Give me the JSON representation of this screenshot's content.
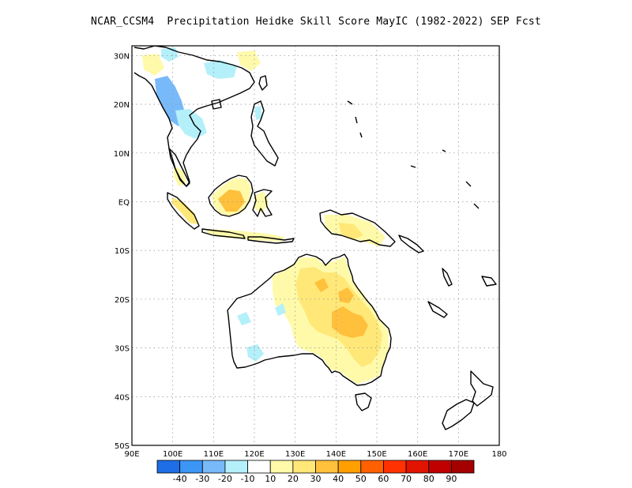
{
  "title": "NCAR_CCSM4  Precipitation Heidke Skill Score MayIC (1982-2022) SEP Fcst",
  "map": {
    "lon_range": [
      90,
      180
    ],
    "lat_range": [
      -50,
      32
    ],
    "lon_ticks": [
      "90E",
      "100E",
      "110E",
      "120E",
      "130E",
      "140E",
      "150E",
      "160E",
      "170E",
      "180"
    ],
    "lat_ticks": [
      "30N",
      "20N",
      "10N",
      "EQ",
      "10S",
      "20S",
      "30S",
      "40S",
      "50S"
    ],
    "lon_tick_values": [
      90,
      100,
      110,
      120,
      130,
      140,
      150,
      160,
      170,
      180
    ],
    "lat_tick_values": [
      30,
      20,
      10,
      0,
      -10,
      -20,
      -30,
      -40,
      -50
    ],
    "gridlines": "dotted"
  },
  "colorbar": {
    "labels": [
      "-40",
      "-30",
      "-20",
      "-10",
      "10",
      "20",
      "30",
      "40",
      "50",
      "60",
      "70",
      "80",
      "90"
    ],
    "colors": [
      "#1e6ee6",
      "#3c96f5",
      "#78b9fa",
      "#b4f0fa",
      "#ffffff",
      "#fffaaa",
      "#ffe878",
      "#ffc03c",
      "#ffa000",
      "#ff6000",
      "#ff3200",
      "#e11400",
      "#c00000",
      "#a50000"
    ]
  }
}
